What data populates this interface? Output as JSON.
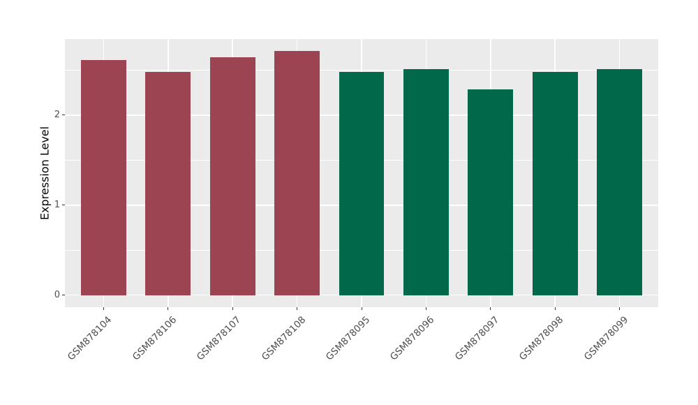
{
  "chart_data": {
    "type": "bar",
    "title": "",
    "xlabel": "",
    "ylabel": "Expression Level",
    "categories": [
      "GSM878104",
      "GSM878106",
      "GSM878107",
      "GSM878108",
      "GSM878095",
      "GSM878096",
      "GSM878097",
      "GSM878098",
      "GSM878099"
    ],
    "values": [
      2.61,
      2.48,
      2.64,
      2.71,
      2.48,
      2.51,
      2.29,
      2.48,
      2.51
    ],
    "bar_colors": [
      "#9d4452",
      "#9d4452",
      "#9d4452",
      "#9d4452",
      "#02684a",
      "#02684a",
      "#02684a",
      "#02684a",
      "#02684a"
    ],
    "group_palette": {
      "left-group": "#9d4452",
      "right-group": "#02684a"
    },
    "yticks": [
      0,
      1,
      2
    ],
    "yticks_minor": [
      0.5,
      1.5,
      2.5
    ],
    "ylim": [
      -0.135,
      2.845
    ],
    "bar_width_fraction": 0.7,
    "category_edge_padding": 0.6,
    "grid": true,
    "legend": "none",
    "panel_background": "#ebebeb",
    "grid_color": "#ffffff",
    "axis_text_color": "#4d4d4d",
    "axis_title_color": "#000000",
    "tick_color": "#333333"
  }
}
